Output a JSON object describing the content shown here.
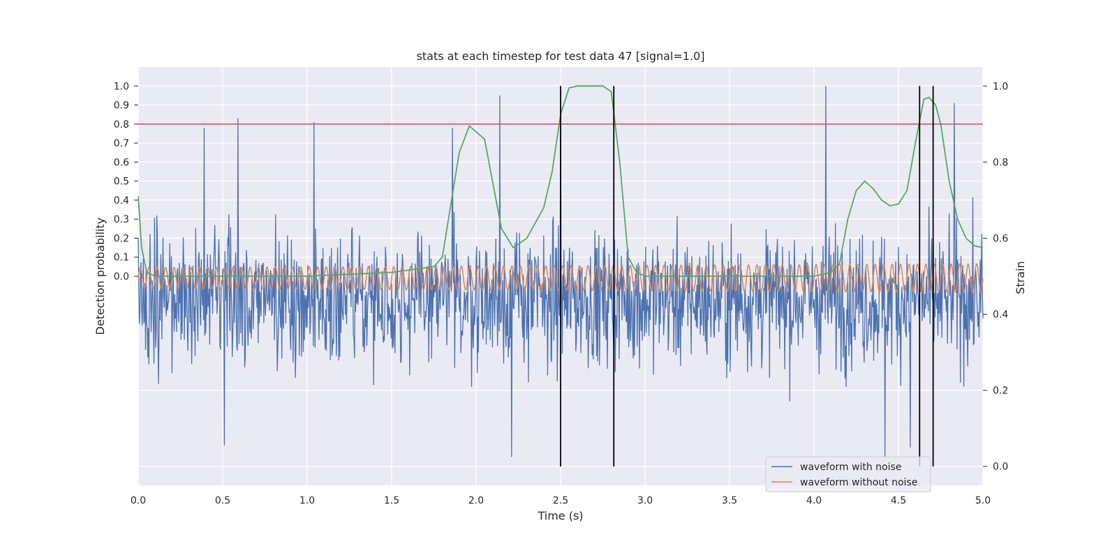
{
  "chart_data": {
    "type": "line",
    "title": "stats at each timestep for test data 47 [signal=1.0]",
    "xlabel": "Time (s)",
    "ylabel": "Detection probability",
    "y2label": "Strain",
    "xlim": [
      0.0,
      5.0
    ],
    "ylim": [
      -1.1,
      1.1
    ],
    "y2lim": [
      -0.05,
      1.05
    ],
    "x_ticks": [
      "0.0",
      "0.5",
      "1.0",
      "1.5",
      "2.0",
      "2.5",
      "3.0",
      "3.5",
      "4.0",
      "4.5",
      "5.0"
    ],
    "y_ticks": [
      "0.0",
      "0.1",
      "0.2",
      "0.3",
      "0.4",
      "0.5",
      "0.6",
      "0.7",
      "0.8",
      "0.9",
      "1.0"
    ],
    "y2_ticks": [
      "0.0",
      "0.2",
      "0.4",
      "0.6",
      "0.8",
      "1.0"
    ],
    "grid": true,
    "legend_position": "bottom-right",
    "series": [
      {
        "name": "waveform with noise",
        "color": "#4c72b0",
        "note_amplitude_envelope": [
          0.58,
          -0.84
        ],
        "x": [
          0.0,
          0.39,
          0.51,
          0.59,
          1.04,
          1.86,
          2.14,
          2.21,
          2.5,
          4.07,
          4.42,
          4.57,
          4.83
        ],
        "y": [
          0.2,
          0.78,
          -0.89,
          0.83,
          0.81,
          0.78,
          0.95,
          -0.95,
          0.9,
          1.0,
          -0.95,
          -0.9,
          0.91
        ]
      },
      {
        "name": "waveform without noise",
        "color": "#dd8452",
        "amplitude_start": 0.055,
        "amplitude_end": 0.075,
        "cycles": 100
      },
      {
        "name": "",
        "color": "#55a868",
        "x": [
          0.0,
          0.02,
          0.05,
          0.1,
          0.5,
          1.0,
          1.5,
          1.75,
          1.8,
          1.9,
          1.96,
          2.05,
          2.15,
          2.22,
          2.3,
          2.4,
          2.45,
          2.5,
          2.55,
          2.6,
          2.75,
          2.8,
          2.85,
          2.9,
          2.95,
          3.0,
          3.5,
          4.0,
          4.1,
          4.15,
          4.2,
          4.25,
          4.3,
          4.35,
          4.4,
          4.45,
          4.5,
          4.55,
          4.6,
          4.65,
          4.68,
          4.72,
          4.75,
          4.8,
          4.85,
          4.9,
          4.95,
          5.0
        ],
        "y": [
          0.42,
          0.15,
          0.02,
          0.0,
          0.0,
          0.0,
          0.02,
          0.05,
          0.1,
          0.65,
          0.79,
          0.72,
          0.25,
          0.15,
          0.2,
          0.36,
          0.55,
          0.85,
          0.99,
          1.0,
          1.0,
          0.97,
          0.6,
          0.1,
          0.02,
          0.0,
          0.0,
          0.0,
          0.02,
          0.06,
          0.3,
          0.45,
          0.5,
          0.46,
          0.4,
          0.37,
          0.38,
          0.45,
          0.7,
          0.93,
          0.94,
          0.9,
          0.8,
          0.5,
          0.3,
          0.2,
          0.16,
          0.15
        ]
      }
    ],
    "thresholds": [
      {
        "y": 0.8,
        "color": "#c44e52"
      }
    ],
    "vertical_markers": {
      "color": "#000000",
      "x": [
        2.5,
        2.815,
        4.625,
        4.705
      ]
    },
    "legend": [
      "waveform with noise",
      "waveform without noise"
    ]
  }
}
